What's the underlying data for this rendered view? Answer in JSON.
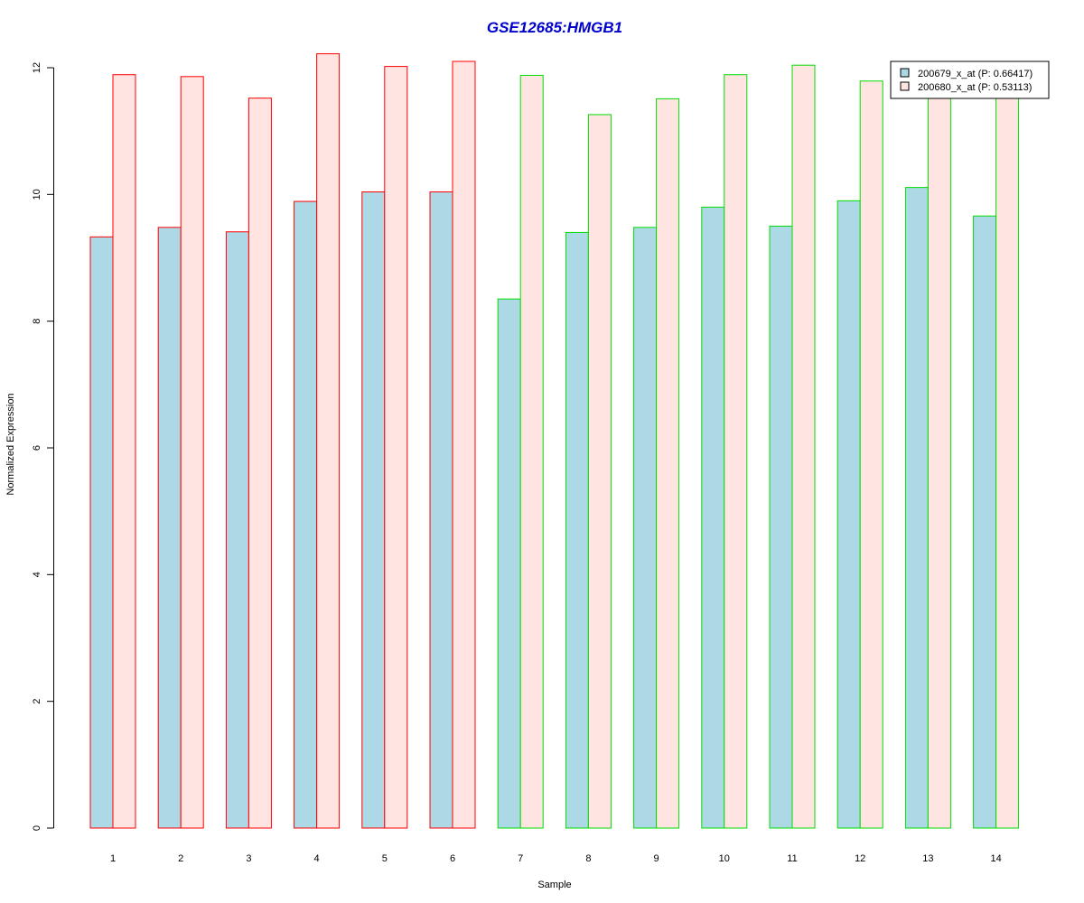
{
  "chart_data": {
    "type": "bar",
    "title": "GSE12685:HMGB1",
    "xlabel": "Sample",
    "ylabel": "Normalized Expression",
    "ylim": [
      0,
      12
    ],
    "yticks": [
      "0",
      "2",
      "4",
      "6",
      "8",
      "10",
      "12"
    ],
    "categories": [
      "1",
      "2",
      "3",
      "4",
      "5",
      "6",
      "7",
      "8",
      "9",
      "10",
      "11",
      "12",
      "13",
      "14"
    ],
    "series": [
      {
        "name": "200679_x_at (P: 0.66417)",
        "values": [
          9.33,
          9.48,
          9.41,
          9.89,
          10.04,
          10.04,
          8.35,
          9.4,
          9.48,
          9.8,
          9.5,
          9.9,
          10.11,
          9.66
        ]
      },
      {
        "name": "200680_x_at (P: 0.53113)",
        "values": [
          11.89,
          11.86,
          11.52,
          12.22,
          12.02,
          12.1,
          11.88,
          11.26,
          11.51,
          11.89,
          12.04,
          11.79,
          11.6,
          11.6
        ]
      }
    ],
    "group_border_colors": [
      "#FF0000",
      "#FF0000",
      "#FF0000",
      "#FF0000",
      "#FF0000",
      "#FF0000",
      "#00DD00",
      "#00DD00",
      "#00DD00",
      "#00DD00",
      "#00DD00",
      "#00DD00",
      "#00DD00",
      "#00DD00"
    ],
    "series_fill_colors": [
      "#ADD8E6",
      "#FFE4E1"
    ],
    "title_color": "#0000CC",
    "legend_position": "top-right",
    "grid": false
  }
}
